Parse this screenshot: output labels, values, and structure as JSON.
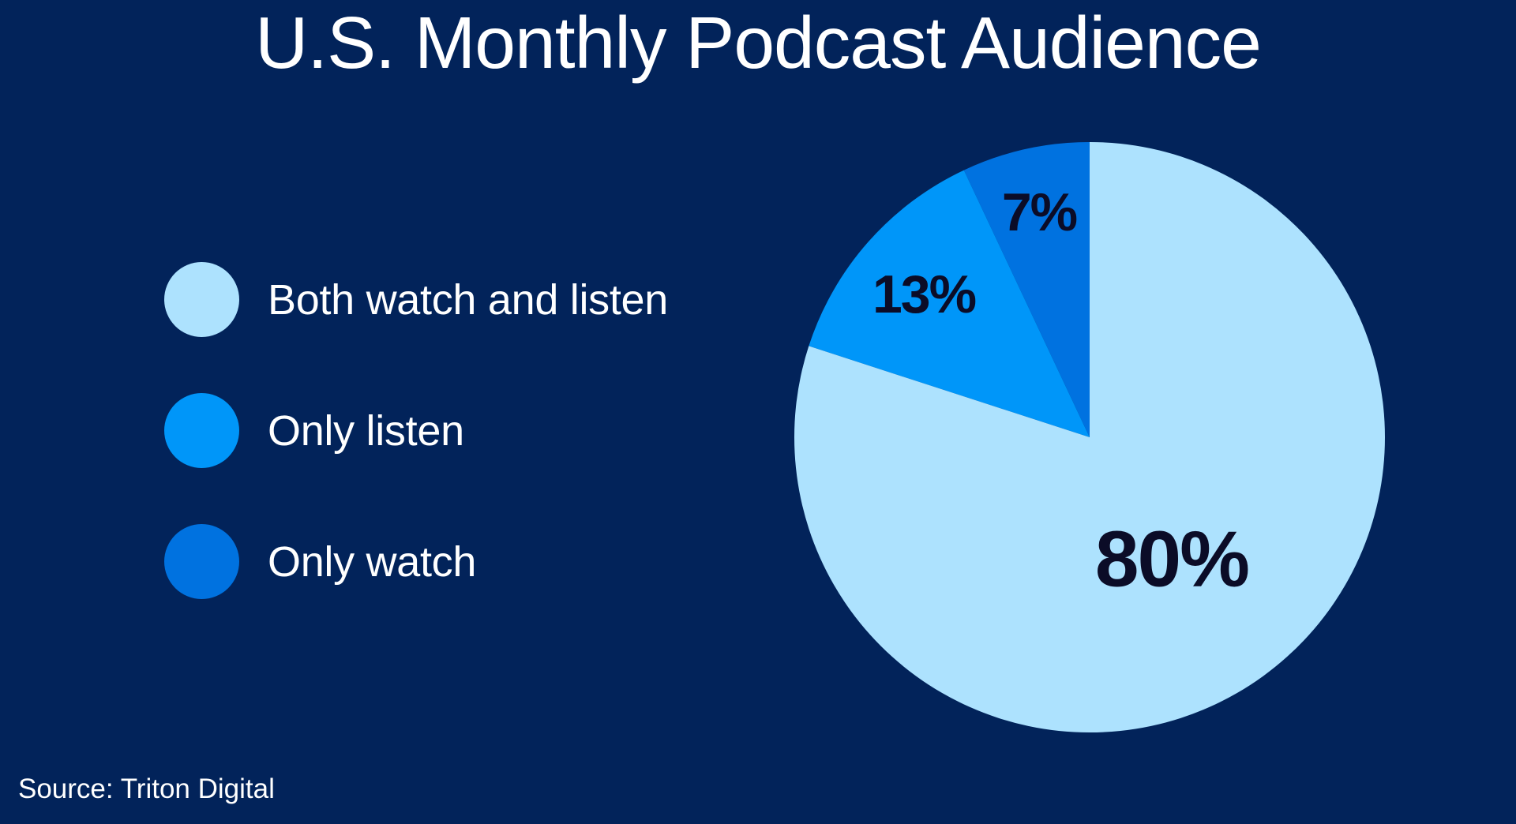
{
  "title": "U.S. Monthly Podcast Audience",
  "source": "Source: Triton Digital",
  "colors": {
    "background": "#02235A",
    "label_text": "#0B0C27",
    "title_text": "#FFFFFF"
  },
  "legend": {
    "items": [
      {
        "label": "Both watch and listen",
        "color": "#ADE2FE"
      },
      {
        "label": "Only listen",
        "color": "#0096F9"
      },
      {
        "label": "Only watch",
        "color": "#0072E0"
      }
    ]
  },
  "slice_labels": {
    "both": "80%",
    "listen": "13%",
    "watch": "7%"
  },
  "chart_data": {
    "type": "pie",
    "title": "U.S. Monthly Podcast Audience",
    "categories": [
      "Both watch and listen",
      "Only listen",
      "Only watch"
    ],
    "values": [
      80,
      13,
      7
    ],
    "unit": "%",
    "colors": [
      "#ADE2FE",
      "#0096F9",
      "#0072E0"
    ],
    "data_labels": [
      "80%",
      "13%",
      "7%"
    ],
    "start_angle": "12 o'clock",
    "direction": "counterclockwise for small slices (Only watch, then Only listen), remainder Both watch and listen",
    "legend_position": "left",
    "source": "Source: Triton Digital"
  }
}
